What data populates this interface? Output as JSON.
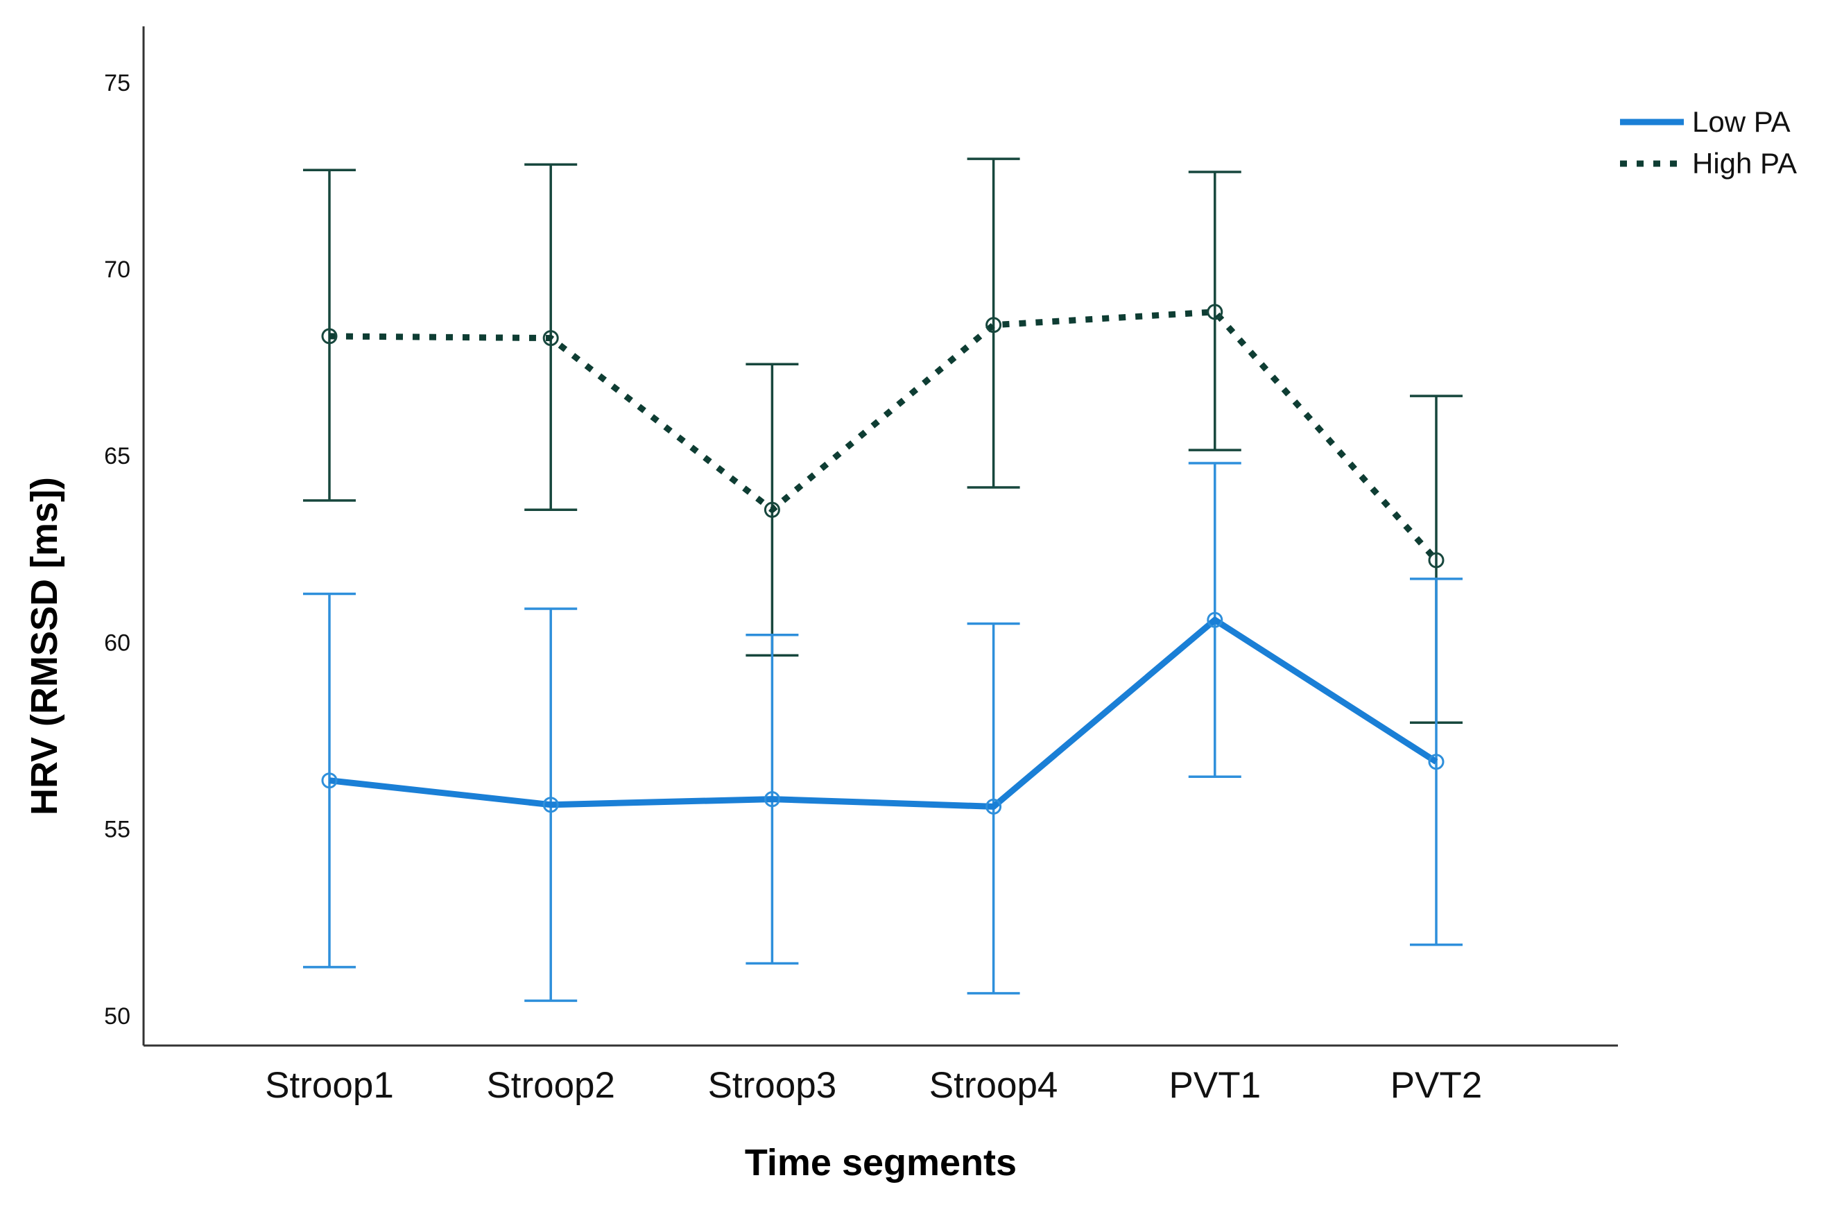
{
  "chart_data": {
    "type": "line",
    "title": "",
    "xlabel": "Time segments",
    "ylabel": "HRV (RMSSD [ms])",
    "categories": [
      "Stroop1",
      "Stroop2",
      "Stroop3",
      "Stroop4",
      "PVT1",
      "PVT2"
    ],
    "ylim": [
      49.2,
      76.5
    ],
    "yticks": [
      50,
      55,
      60,
      65,
      70,
      75
    ],
    "grid": false,
    "legend_position": "top-right",
    "error_bars": true,
    "series": [
      {
        "name": "Low PA",
        "style": "solid",
        "color": "#1a7fd6",
        "values": [
          56.3,
          55.65,
          55.8,
          55.6,
          60.6,
          56.8
        ],
        "lower": [
          51.3,
          50.4,
          51.4,
          50.6,
          56.4,
          51.9
        ],
        "upper": [
          61.3,
          60.9,
          60.2,
          60.5,
          64.8,
          61.7
        ]
      },
      {
        "name": "High PA",
        "style": "dotted",
        "color": "#0e3d33",
        "values": [
          68.2,
          68.15,
          63.55,
          68.5,
          68.85,
          62.2
        ],
        "lower": [
          63.8,
          63.55,
          59.65,
          64.15,
          65.15,
          57.85
        ],
        "upper": [
          72.65,
          72.8,
          67.45,
          72.95,
          72.6,
          66.6
        ]
      }
    ]
  }
}
